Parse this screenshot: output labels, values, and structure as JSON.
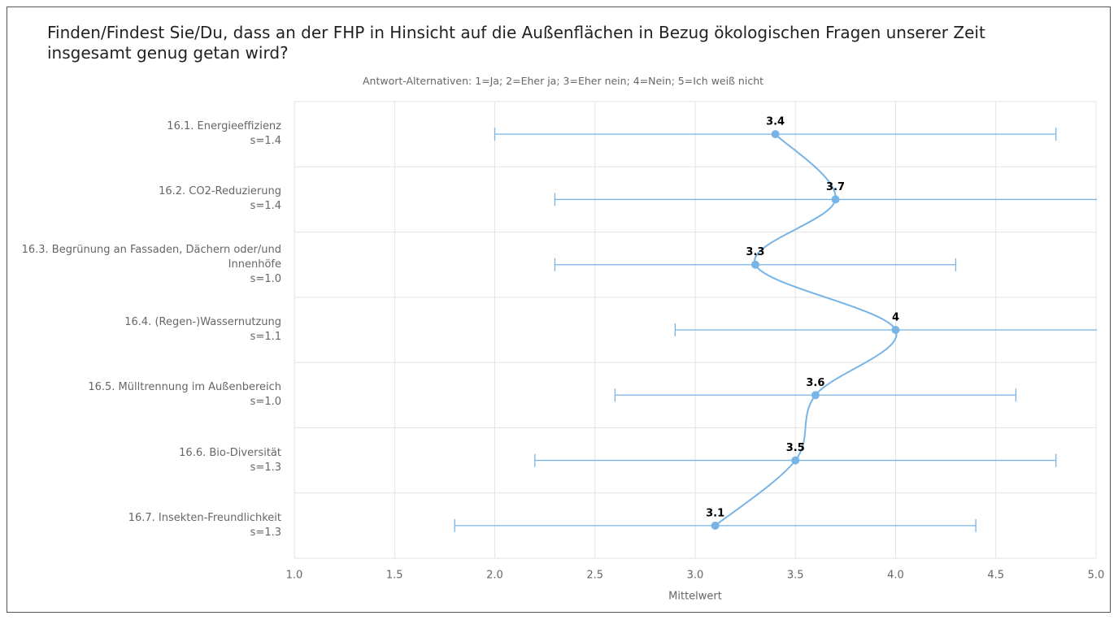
{
  "chart_data": {
    "type": "errorbar",
    "title": "Finden/Findest Sie/Du, dass an der FHP in Hinsicht auf die Außenflächen in Bezug ökologischen Fragen unserer Zeit insgesamt genug getan wird?",
    "subtitle": "Antwort-Alternativen: 1=Ja; 2=Eher ja; 3=Eher nein; 4=Nein; 5=Ich weiß nicht",
    "xlabel": "Mittelwert",
    "categories": [
      "16.1. Energieeffizienz",
      "16.2. CO2-Reduzierung",
      "16.3. Begrünung an Fassaden, Dächern oder/und Innenhöfe",
      "16.4. (Regen-)Wassernutzung",
      "16.5. Mülltrennung im Außenbereich",
      "16.6. Bio-Diversität",
      "16.7. Insekten-Freundlichkeit"
    ],
    "values": [
      3.4,
      3.7,
      3.3,
      4,
      3.6,
      3.5,
      3.1
    ],
    "errors": [
      1.4,
      1.4,
      1.0,
      1.1,
      1.0,
      1.3,
      1.3
    ],
    "error_labels": [
      "s=1.4",
      "s=1.4",
      "s=1.0",
      "s=1.1",
      "s=1.0",
      "s=1.3",
      "s=1.3"
    ],
    "color": "#78b4e6",
    "xlim": [
      1,
      5
    ],
    "xticks": [
      {
        "value": 1,
        "label": "1.0"
      },
      1.5,
      {
        "value": 2,
        "label": "2.0"
      },
      2.5,
      {
        "value": 3,
        "label": "3.0"
      },
      3.5,
      {
        "value": 4,
        "label": "4.0"
      },
      4.5,
      {
        "value": 5,
        "label": "5.0"
      }
    ],
    "grid": true
  }
}
